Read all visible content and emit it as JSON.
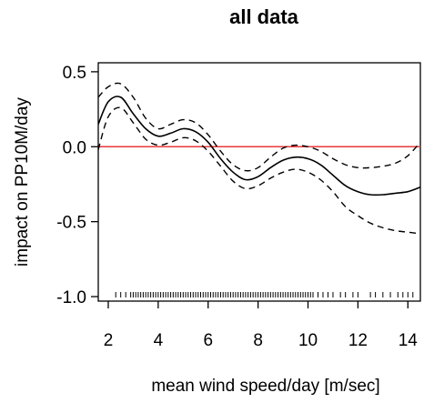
{
  "chart_data": {
    "type": "line",
    "title": "all data",
    "xlabel": "mean wind speed/day [m/sec]",
    "ylabel": "impact on PP10M/day",
    "xlim": [
      1.6,
      14.5
    ],
    "ylim": [
      -1.03,
      0.56
    ],
    "x_ticks": [
      2,
      4,
      6,
      8,
      10,
      12,
      14
    ],
    "x_tick_labels": [
      "2",
      "4",
      "6",
      "8",
      "10",
      "12",
      "14"
    ],
    "y_ticks": [
      -1.0,
      -0.5,
      0.0,
      0.5
    ],
    "y_tick_labels": [
      "-1.0",
      "-0.5",
      "0.0",
      "0.5"
    ],
    "reference_line": {
      "y": 0.0,
      "color": "#e8383b"
    },
    "series": [
      {
        "style": "solid",
        "x": [
          1.6,
          2.0,
          2.5,
          3.0,
          3.5,
          4.0,
          4.5,
          5.0,
          5.5,
          6.0,
          6.5,
          7.0,
          7.5,
          8.0,
          8.5,
          9.0,
          9.5,
          10.0,
          10.5,
          11.0,
          11.5,
          12.0,
          12.5,
          13.0,
          13.5,
          14.0,
          14.5
        ],
        "y": [
          0.15,
          0.3,
          0.33,
          0.22,
          0.12,
          0.07,
          0.09,
          0.12,
          0.1,
          0.03,
          -0.08,
          -0.17,
          -0.22,
          -0.2,
          -0.14,
          -0.09,
          -0.07,
          -0.08,
          -0.12,
          -0.19,
          -0.26,
          -0.3,
          -0.32,
          -0.32,
          -0.31,
          -0.3,
          -0.27
        ]
      },
      {
        "style": "dashed",
        "x": [
          1.6,
          2.0,
          2.5,
          3.0,
          3.5,
          4.0,
          4.5,
          5.0,
          5.5,
          6.0,
          6.5,
          7.0,
          7.5,
          8.0,
          8.5,
          9.0,
          9.5,
          10.0,
          10.5,
          11.0,
          11.5,
          12.0,
          12.5,
          13.0,
          13.5,
          14.0,
          14.5
        ],
        "y": [
          0.33,
          0.4,
          0.42,
          0.33,
          0.19,
          0.12,
          0.15,
          0.18,
          0.16,
          0.08,
          -0.03,
          -0.12,
          -0.16,
          -0.14,
          -0.07,
          -0.01,
          0.01,
          0.0,
          -0.03,
          -0.08,
          -0.12,
          -0.14,
          -0.14,
          -0.13,
          -0.11,
          -0.06,
          0.03
        ]
      },
      {
        "style": "dashed",
        "x": [
          1.6,
          2.0,
          2.5,
          3.0,
          3.5,
          4.0,
          4.5,
          5.0,
          5.5,
          6.0,
          6.5,
          7.0,
          7.5,
          8.0,
          8.5,
          9.0,
          9.5,
          10.0,
          10.5,
          11.0,
          11.5,
          12.0,
          12.5,
          13.0,
          13.5,
          14.0,
          14.5
        ],
        "y": [
          -0.02,
          0.2,
          0.26,
          0.16,
          0.05,
          0.01,
          0.03,
          0.06,
          0.04,
          -0.03,
          -0.13,
          -0.23,
          -0.28,
          -0.26,
          -0.21,
          -0.17,
          -0.15,
          -0.17,
          -0.22,
          -0.3,
          -0.4,
          -0.46,
          -0.51,
          -0.54,
          -0.56,
          -0.57,
          -0.58
        ]
      }
    ],
    "rug_x": [
      2.3,
      2.5,
      2.7,
      2.9,
      3.0,
      3.1,
      3.2,
      3.3,
      3.4,
      3.5,
      3.6,
      3.7,
      3.8,
      3.9,
      4.0,
      4.1,
      4.2,
      4.3,
      4.4,
      4.5,
      4.6,
      4.7,
      4.8,
      4.9,
      5.0,
      5.1,
      5.2,
      5.3,
      5.4,
      5.5,
      5.6,
      5.7,
      5.8,
      5.9,
      6.0,
      6.1,
      6.2,
      6.3,
      6.4,
      6.5,
      6.6,
      6.7,
      6.8,
      6.9,
      7.0,
      7.1,
      7.2,
      7.3,
      7.4,
      7.5,
      7.6,
      7.7,
      7.8,
      7.9,
      8.0,
      8.1,
      8.2,
      8.3,
      8.4,
      8.5,
      8.6,
      8.7,
      8.8,
      8.9,
      9.0,
      9.1,
      9.2,
      9.3,
      9.4,
      9.5,
      9.6,
      9.7,
      9.8,
      9.9,
      10.0,
      10.1,
      10.2,
      10.4,
      10.6,
      10.8,
      11.0,
      11.3,
      11.5,
      11.8,
      12.0,
      12.5,
      12.7,
      13.0,
      13.3,
      13.6,
      13.8,
      14.0,
      14.2
    ]
  }
}
